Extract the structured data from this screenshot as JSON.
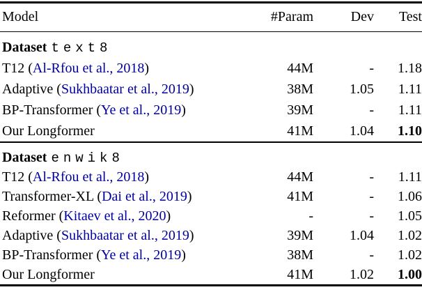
{
  "table": {
    "columns": [
      "Model",
      "#Param",
      "Dev",
      "Test"
    ],
    "link_color": "#0000A0",
    "sections": [
      {
        "label": "Dataset",
        "dataset": "text8",
        "rows": [
          {
            "model": "T12",
            "cite": "Al-Rfou et al., 2018",
            "param": "44M",
            "dev": "-",
            "test": "1.18",
            "test_bold": false
          },
          {
            "model": "Adaptive",
            "cite": "Sukhbaatar et al., 2019",
            "param": "38M",
            "dev": "1.05",
            "test": "1.11",
            "test_bold": false
          },
          {
            "model": "BP-Transformer",
            "cite": "Ye et al., 2019",
            "param": "39M",
            "dev": "-",
            "test": "1.11",
            "test_bold": false
          },
          {
            "model": "Our Longformer",
            "cite": null,
            "param": "41M",
            "dev": "1.04",
            "test": "1.10",
            "test_bold": true
          }
        ]
      },
      {
        "label": "Dataset",
        "dataset": "enwik8",
        "rows": [
          {
            "model": "T12",
            "cite": "Al-Rfou et al., 2018",
            "param": "44M",
            "dev": "-",
            "test": "1.11",
            "test_bold": false
          },
          {
            "model": "Transformer-XL",
            "cite": "Dai et al., 2019",
            "param": "41M",
            "dev": "-",
            "test": "1.06",
            "test_bold": false
          },
          {
            "model": "Reformer",
            "cite": "Kitaev et al., 2020",
            "param": "-",
            "dev": "-",
            "test": "1.05",
            "test_bold": false
          },
          {
            "model": "Adaptive",
            "cite": "Sukhbaatar et al., 2019",
            "param": "39M",
            "dev": "1.04",
            "test": "1.02",
            "test_bold": false
          },
          {
            "model": "BP-Transformer",
            "cite": "Ye et al., 2019",
            "param": "38M",
            "dev": "-",
            "test": "1.02",
            "test_bold": false
          },
          {
            "model": "Our Longformer",
            "cite": null,
            "param": "41M",
            "dev": "1.02",
            "test": "1.00",
            "test_bold": true
          }
        ]
      }
    ]
  }
}
